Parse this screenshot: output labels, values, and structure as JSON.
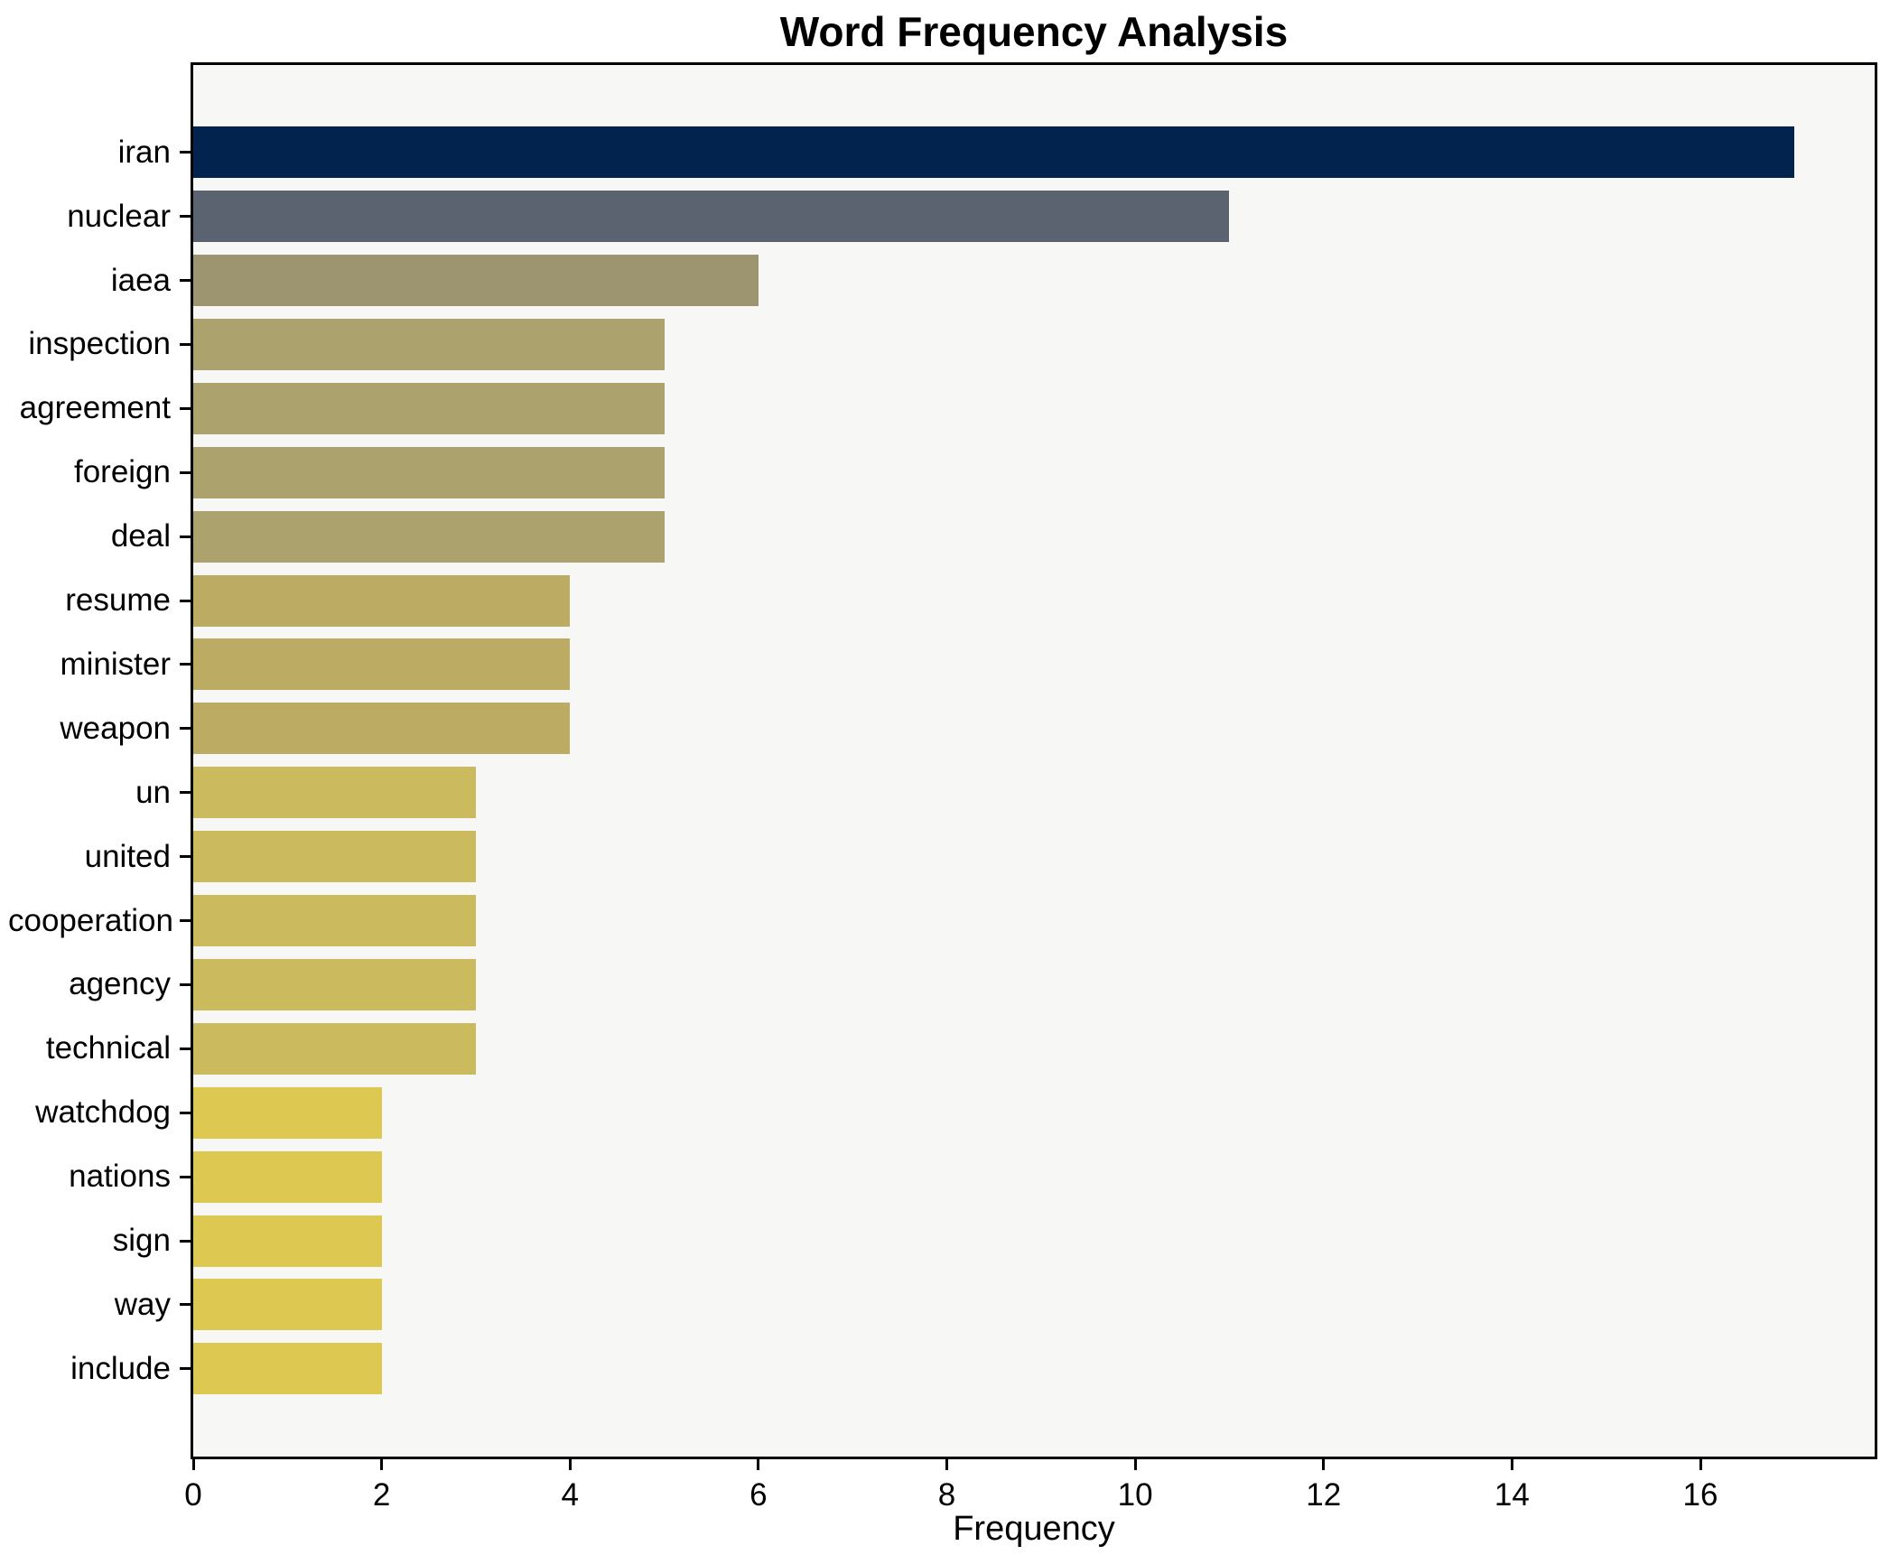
{
  "chart_data": {
    "type": "bar",
    "orientation": "horizontal",
    "title": "Word Frequency Analysis",
    "xlabel": "Frequency",
    "ylabel": "",
    "grid": false,
    "legend": "none",
    "plot_background": "#f7f7f5",
    "figure_background": "#ffffff",
    "xlim": [
      0,
      17.85
    ],
    "x_ticks": [
      0,
      2,
      4,
      6,
      8,
      10,
      12,
      14,
      16
    ],
    "categories": [
      "iran",
      "nuclear",
      "iaea",
      "inspection",
      "agreement",
      "foreign",
      "deal",
      "resume",
      "minister",
      "weapon",
      "un",
      "united",
      "cooperation",
      "agency",
      "technical",
      "watchdog",
      "nations",
      "sign",
      "way",
      "include"
    ],
    "values": [
      17,
      11,
      6,
      5,
      5,
      5,
      5,
      4,
      4,
      4,
      3,
      3,
      3,
      3,
      3,
      2,
      2,
      2,
      2,
      2
    ],
    "bars": [
      {
        "label": "iran",
        "value": 17,
        "color": "#01234e"
      },
      {
        "label": "nuclear",
        "value": 11,
        "color": "#5c6370"
      },
      {
        "label": "iaea",
        "value": 6,
        "color": "#9d9470"
      },
      {
        "label": "inspection",
        "value": 5,
        "color": "#aca26e"
      },
      {
        "label": "agreement",
        "value": 5,
        "color": "#aca26e"
      },
      {
        "label": "foreign",
        "value": 5,
        "color": "#aca26e"
      },
      {
        "label": "deal",
        "value": 5,
        "color": "#aca26e"
      },
      {
        "label": "resume",
        "value": 4,
        "color": "#bcab62"
      },
      {
        "label": "minister",
        "value": 4,
        "color": "#bcab62"
      },
      {
        "label": "weapon",
        "value": 4,
        "color": "#bcab62"
      },
      {
        "label": "un",
        "value": 3,
        "color": "#ccba5e"
      },
      {
        "label": "united",
        "value": 3,
        "color": "#ccba5e"
      },
      {
        "label": "cooperation",
        "value": 3,
        "color": "#ccba5e"
      },
      {
        "label": "agency",
        "value": 3,
        "color": "#ccba5e"
      },
      {
        "label": "technical",
        "value": 3,
        "color": "#ccba5e"
      },
      {
        "label": "watchdog",
        "value": 2,
        "color": "#ddc851"
      },
      {
        "label": "nations",
        "value": 2,
        "color": "#ddc851"
      },
      {
        "label": "sign",
        "value": 2,
        "color": "#ddc851"
      },
      {
        "label": "way",
        "value": 2,
        "color": "#ddc851"
      },
      {
        "label": "include",
        "value": 2,
        "color": "#ddc851"
      }
    ]
  }
}
